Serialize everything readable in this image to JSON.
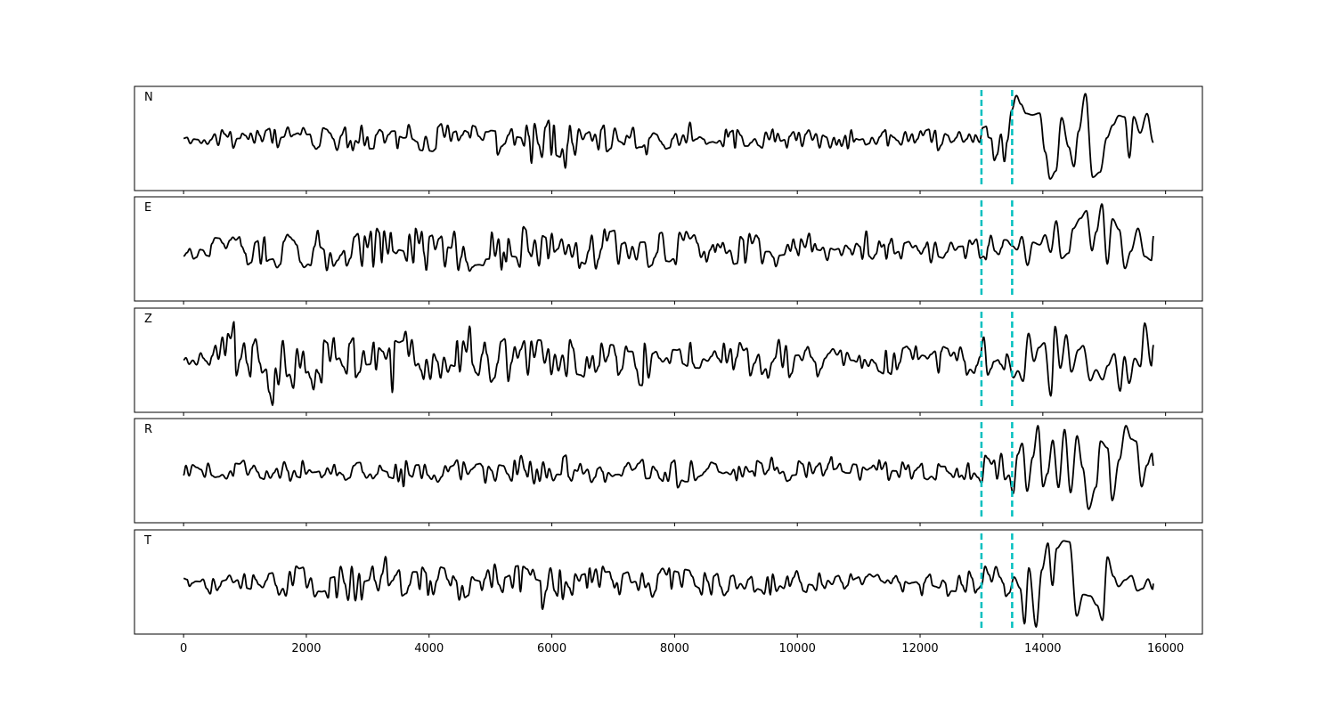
{
  "chart_data": {
    "type": "line",
    "xlim": [
      -800,
      16600
    ],
    "x_ticks": [
      0,
      2000,
      4000,
      6000,
      8000,
      10000,
      12000,
      14000,
      16000
    ],
    "x_tick_labels": [
      "0",
      "2000",
      "4000",
      "6000",
      "8000",
      "10000",
      "12000",
      "14000",
      "16000"
    ],
    "x_range_data": [
      0,
      15800
    ],
    "marker_lines": {
      "x": [
        13000,
        13500
      ],
      "color": "#00bfbf",
      "style": "dashed"
    },
    "trace_color": "#000000",
    "panels": [
      {
        "label": "N",
        "seed": 11,
        "ylim": [
          -1.1,
          1.1
        ],
        "envelope": [
          [
            0,
            0.12
          ],
          [
            1000,
            0.25
          ],
          [
            2500,
            0.3
          ],
          [
            5400,
            0.35
          ],
          [
            6000,
            0.45
          ],
          [
            7000,
            0.3
          ],
          [
            9000,
            0.22
          ],
          [
            12900,
            0.2
          ],
          [
            13500,
            0.7
          ],
          [
            14000,
            0.95
          ],
          [
            15200,
            0.85
          ],
          [
            15800,
            0.6
          ]
        ]
      },
      {
        "label": "E",
        "seed": 23,
        "ylim": [
          -1.1,
          1.1
        ],
        "envelope": [
          [
            0,
            0.2
          ],
          [
            1000,
            0.35
          ],
          [
            1900,
            0.5
          ],
          [
            5600,
            0.5
          ],
          [
            7000,
            0.45
          ],
          [
            9000,
            0.35
          ],
          [
            12500,
            0.2
          ],
          [
            13500,
            0.45
          ],
          [
            14500,
            0.7
          ],
          [
            14850,
            1.0
          ],
          [
            15500,
            0.6
          ],
          [
            15800,
            0.3
          ]
        ]
      },
      {
        "label": "Z",
        "seed": 37,
        "ylim": [
          -1.1,
          1.1
        ],
        "envelope": [
          [
            0,
            0.1
          ],
          [
            500,
            0.3
          ],
          [
            750,
            0.9
          ],
          [
            1200,
            0.7
          ],
          [
            1800,
            0.75
          ],
          [
            3000,
            0.45
          ],
          [
            5500,
            0.5
          ],
          [
            7000,
            0.45
          ],
          [
            9500,
            0.4
          ],
          [
            12500,
            0.3
          ],
          [
            13500,
            0.45
          ],
          [
            14200,
            0.85
          ],
          [
            15000,
            0.5
          ],
          [
            15600,
            1.0
          ],
          [
            15800,
            0.5
          ]
        ]
      },
      {
        "label": "R",
        "seed": 53,
        "ylim": [
          -1.1,
          1.1
        ],
        "envelope": [
          [
            0,
            0.12
          ],
          [
            1000,
            0.28
          ],
          [
            3000,
            0.22
          ],
          [
            5500,
            0.35
          ],
          [
            6200,
            0.4
          ],
          [
            8000,
            0.25
          ],
          [
            12900,
            0.2
          ],
          [
            13400,
            0.45
          ],
          [
            14150,
            1.0
          ],
          [
            15000,
            0.8
          ],
          [
            15600,
            0.8
          ],
          [
            15800,
            0.4
          ]
        ]
      },
      {
        "label": "T",
        "seed": 71,
        "ylim": [
          -1.1,
          1.1
        ],
        "envelope": [
          [
            0,
            0.15
          ],
          [
            1000,
            0.25
          ],
          [
            1900,
            0.45
          ],
          [
            6000,
            0.4
          ],
          [
            9000,
            0.3
          ],
          [
            12500,
            0.2
          ],
          [
            13500,
            0.5
          ],
          [
            14000,
            0.9
          ],
          [
            14850,
            1.0
          ],
          [
            15500,
            0.6
          ],
          [
            15800,
            0.3
          ]
        ]
      }
    ]
  }
}
